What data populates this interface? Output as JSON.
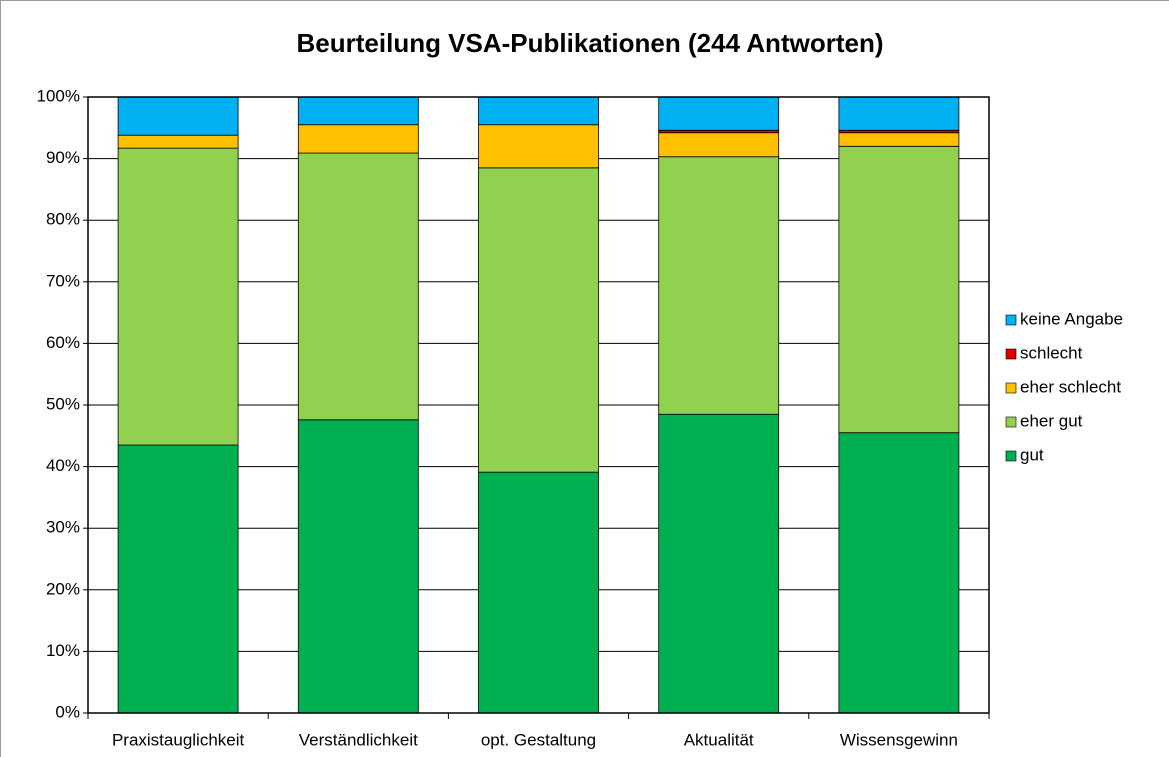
{
  "chart_data": {
    "type": "stacked_bar",
    "title": "Beurteilung VSA-Publikationen (244 Antworten)",
    "categories": [
      "Praxistauglichkeit",
      "Verständlichkeit",
      "opt. Gestaltung",
      "Aktualität",
      "Wissensgewinn"
    ],
    "series": [
      {
        "name": "gut",
        "color": "#00b050",
        "values": [
          43.5,
          47.6,
          39.1,
          48.5,
          45.5
        ]
      },
      {
        "name": "eher gut",
        "color": "#92d050",
        "values": [
          48.2,
          43.3,
          49.4,
          41.8,
          46.5
        ]
      },
      {
        "name": "eher schlecht",
        "color": "#ffc000",
        "values": [
          2.1,
          4.6,
          7.0,
          3.9,
          2.2
        ]
      },
      {
        "name": "schlecht",
        "color": "#e00000",
        "values": [
          0,
          0,
          0,
          0.4,
          0.4
        ]
      },
      {
        "name": "keine Angabe",
        "color": "#00b0f0",
        "values": [
          6.2,
          4.5,
          4.5,
          5.4,
          5.4
        ]
      }
    ],
    "ylim": [
      0,
      100
    ],
    "yticks": [
      {
        "value": 0,
        "label": "0%"
      },
      {
        "value": 10,
        "label": "10%"
      },
      {
        "value": 20,
        "label": "20%"
      },
      {
        "value": 30,
        "label": "30%"
      },
      {
        "value": 40,
        "label": "40%"
      },
      {
        "value": 50,
        "label": "50%"
      },
      {
        "value": 60,
        "label": "60%"
      },
      {
        "value": 70,
        "label": "70%"
      },
      {
        "value": 80,
        "label": "80%"
      },
      {
        "value": 90,
        "label": "90%"
      },
      {
        "value": 100,
        "label": "100%"
      }
    ],
    "grid": true,
    "legend": "right"
  }
}
